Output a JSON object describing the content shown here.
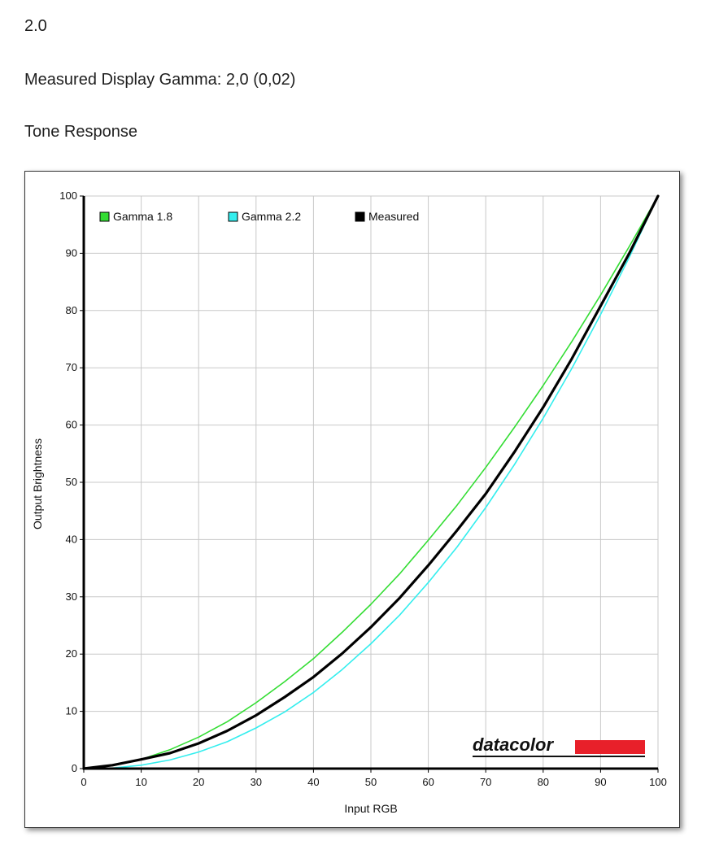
{
  "header": {
    "version": "2.0",
    "measured_gamma": "Measured Display Gamma: 2,0 (0,02)",
    "section_title": "Tone Response"
  },
  "colors": {
    "gamma18": "#33dd33",
    "gamma22": "#33eeee",
    "measured": "#000000",
    "grid": "#c8c8c8",
    "brand_red": "#e8202a"
  },
  "logo": {
    "text": "datacolor"
  },
  "chart_data": {
    "type": "line",
    "title": "",
    "xlabel": "Input RGB",
    "ylabel": "Output Brightness",
    "xlim": [
      0,
      100
    ],
    "ylim": [
      0,
      100
    ],
    "xticks": [
      0,
      10,
      20,
      30,
      40,
      50,
      60,
      70,
      80,
      90,
      100
    ],
    "yticks": [
      0,
      10,
      20,
      30,
      40,
      50,
      60,
      70,
      80,
      90,
      100
    ],
    "grid": true,
    "legend_position": "top-left",
    "series": [
      {
        "name": "Gamma 1.8",
        "color": "#33dd33",
        "x": [
          0,
          5,
          10,
          15,
          20,
          25,
          30,
          35,
          40,
          45,
          50,
          55,
          60,
          65,
          70,
          75,
          80,
          85,
          90,
          95,
          100
        ],
        "y": [
          0,
          0.5,
          1.6,
          3.3,
          5.5,
          8.2,
          11.5,
          15.2,
          19.2,
          23.8,
          28.7,
          34.0,
          39.9,
          46.0,
          52.6,
          59.6,
          66.9,
          74.6,
          82.7,
          91.2,
          100
        ]
      },
      {
        "name": "Gamma 2.2",
        "color": "#33eeee",
        "x": [
          0,
          5,
          10,
          15,
          20,
          25,
          30,
          35,
          40,
          45,
          50,
          55,
          60,
          65,
          70,
          75,
          80,
          85,
          90,
          95,
          100
        ],
        "y": [
          0,
          0.1,
          0.6,
          1.5,
          2.9,
          4.7,
          7.1,
          9.9,
          13.3,
          17.3,
          21.8,
          26.8,
          32.5,
          38.7,
          45.6,
          53.1,
          61.2,
          69.9,
          79.3,
          89.3,
          100
        ]
      },
      {
        "name": "Measured",
        "color": "#000000",
        "x": [
          0,
          5,
          10,
          15,
          20,
          25,
          30,
          35,
          40,
          45,
          50,
          55,
          60,
          65,
          70,
          75,
          80,
          85,
          90,
          95,
          100
        ],
        "y": [
          0,
          0.6,
          1.6,
          2.7,
          4.4,
          6.6,
          9.3,
          12.5,
          16.0,
          20.1,
          24.7,
          29.8,
          35.5,
          41.6,
          48.0,
          55.3,
          63.1,
          71.6,
          80.8,
          90.0,
          100
        ]
      }
    ]
  }
}
